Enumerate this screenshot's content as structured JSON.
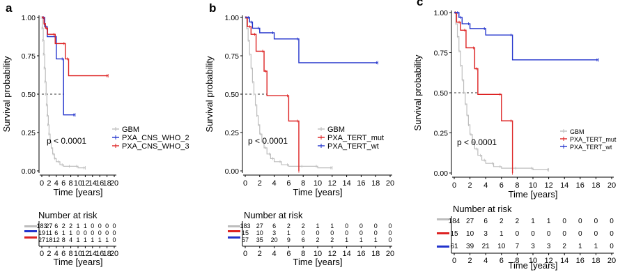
{
  "chart_data": [
    {
      "type": "line",
      "panel_label": "a",
      "xlabel": "Time [years]",
      "ylabel": "Survival probability",
      "xlim": [
        0,
        20
      ],
      "ylim": [
        0,
        1
      ],
      "xticks": [
        "0",
        "2",
        "4",
        "6",
        "8",
        "10",
        "12",
        "14",
        "16",
        "18",
        "20"
      ],
      "yticks": [
        "0.00",
        "0.25",
        "0.50",
        "0.75",
        "1.00"
      ],
      "pvalue": "p < 0.0001",
      "median_line": {
        "y": 0.5,
        "x_end": 6.0
      },
      "legend_position": "center-right",
      "series": [
        {
          "name": "GBM",
          "color": "#bdbdbd",
          "x": [
            0,
            0.2,
            0.4,
            0.6,
            0.8,
            1.0,
            1.2,
            1.4,
            1.6,
            1.8,
            2.0,
            2.3,
            2.6,
            3.0,
            3.5,
            4.0,
            5.0,
            6.0,
            8.0,
            10.0,
            12.0
          ],
          "y": [
            1,
            0.93,
            0.85,
            0.76,
            0.67,
            0.58,
            0.5,
            0.43,
            0.36,
            0.3,
            0.24,
            0.19,
            0.15,
            0.11,
            0.08,
            0.06,
            0.04,
            0.03,
            0.03,
            0.02,
            0.02
          ]
        },
        {
          "name": "PXA_CNS_WHO_2",
          "color": "#2233cc",
          "x": [
            0,
            0.8,
            1.5,
            4.0,
            6.0,
            9.2
          ],
          "y": [
            1.0,
            0.94,
            0.875,
            0.73,
            0.365,
            0.365
          ]
        },
        {
          "name": "PXA_CNS_WHO_3",
          "color": "#dd2222",
          "x": [
            0,
            0.6,
            1.0,
            1.6,
            3.7,
            6.5,
            7.4,
            18.3
          ],
          "y": [
            1.0,
            0.96,
            0.93,
            0.89,
            0.83,
            0.73,
            0.62,
            0.62
          ]
        }
      ],
      "risk_table": {
        "title": "Number at risk",
        "times": [
          "0",
          "2",
          "4",
          "6",
          "8",
          "10",
          "12",
          "14",
          "16",
          "18",
          "20"
        ],
        "rows": [
          {
            "name": "GBM",
            "color": "#bdbdbd",
            "values": [
              "183",
              "27",
              "6",
              "2",
              "2",
              "1",
              "1",
              "0",
              "0",
              "0",
              "0"
            ]
          },
          {
            "name": "PXA_CNS_WHO_2",
            "color": "#2233cc",
            "values": [
              "19",
              "11",
              "6",
              "1",
              "1",
              "0",
              "0",
              "0",
              "0",
              "0",
              "0"
            ]
          },
          {
            "name": "PXA_CNS_WHO_3",
            "color": "#dd2222",
            "values": [
              "27",
              "18",
              "12",
              "8",
              "4",
              "1",
              "1",
              "1",
              "1",
              "1",
              "0"
            ]
          }
        ],
        "xlabel": "Time [years]"
      }
    },
    {
      "type": "line",
      "panel_label": "b",
      "xlabel": "Time [years]",
      "ylabel": "Survival probability",
      "xlim": [
        0,
        20
      ],
      "ylim": [
        0,
        1
      ],
      "xticks": [
        "0",
        "2",
        "4",
        "6",
        "8",
        "10",
        "12",
        "14",
        "16",
        "18",
        "20"
      ],
      "yticks": [
        "0.00",
        "0.25",
        "0.50",
        "0.75",
        "1.00"
      ],
      "pvalue": "p < 0.0001",
      "median_line": {
        "y": 0.5,
        "x_end": 3.0
      },
      "legend_position": "center-right",
      "series": [
        {
          "name": "GBM",
          "color": "#bdbdbd",
          "x": [
            0,
            0.2,
            0.4,
            0.6,
            0.8,
            1.0,
            1.2,
            1.4,
            1.6,
            1.8,
            2.0,
            2.3,
            2.6,
            3.0,
            3.5,
            4.0,
            5.0,
            6.0,
            8.0,
            10.0,
            12.0
          ],
          "y": [
            1,
            0.93,
            0.85,
            0.76,
            0.67,
            0.58,
            0.5,
            0.43,
            0.36,
            0.3,
            0.24,
            0.19,
            0.15,
            0.11,
            0.08,
            0.06,
            0.04,
            0.03,
            0.03,
            0.02,
            0.02
          ]
        },
        {
          "name": "PXA_TERT_mut",
          "color": "#dd2222",
          "x": [
            0,
            0.3,
            0.8,
            1.5,
            2.6,
            3.0,
            6.0,
            7.4
          ],
          "y": [
            1.0,
            0.94,
            0.89,
            0.78,
            0.65,
            0.49,
            0.325,
            0.0
          ]
        },
        {
          "name": "PXA_TERT_wt",
          "color": "#2233cc",
          "x": [
            0,
            0.6,
            1.0,
            2.0,
            4.0,
            7.4,
            18.3
          ],
          "y": [
            1.0,
            0.97,
            0.93,
            0.9,
            0.86,
            0.705,
            0.705
          ]
        }
      ],
      "risk_table": {
        "title": "Number at risk",
        "times": [
          "0",
          "2",
          "4",
          "6",
          "8",
          "10",
          "12",
          "14",
          "16",
          "18",
          "20"
        ],
        "rows": [
          {
            "name": "GBM",
            "color": "#bdbdbd",
            "values": [
              "183",
              "27",
              "6",
              "2",
              "2",
              "1",
              "1",
              "0",
              "0",
              "0",
              "0"
            ]
          },
          {
            "name": "PXA_TERT_mut",
            "color": "#dd2222",
            "values": [
              "15",
              "10",
              "3",
              "1",
              "0",
              "0",
              "0",
              "0",
              "0",
              "0",
              "0"
            ]
          },
          {
            "name": "PXA_TERT_wt",
            "color": "#2233cc",
            "values": [
              "57",
              "35",
              "20",
              "9",
              "6",
              "2",
              "2",
              "1",
              "1",
              "1",
              "0"
            ]
          }
        ],
        "xlabel": "Time [years]"
      }
    },
    {
      "type": "line",
      "panel_label": "c",
      "xlabel": "Time [years]",
      "ylabel": "Survival probability",
      "xlim": [
        0,
        20
      ],
      "ylim": [
        0,
        1
      ],
      "xticks": [
        "0",
        "2",
        "4",
        "6",
        "8",
        "10",
        "12",
        "14",
        "16",
        "18",
        "20"
      ],
      "yticks": [
        "0.00",
        "0.25",
        "0.50",
        "0.75",
        "1.00"
      ],
      "pvalue": "p < 0.0001",
      "median_line": {
        "y": 0.5,
        "x_end": 3.0
      },
      "legend_position": "center-right",
      "series": [
        {
          "name": "GBM",
          "color": "#bdbdbd",
          "x": [
            0,
            0.2,
            0.4,
            0.6,
            0.8,
            1.0,
            1.2,
            1.4,
            1.6,
            1.8,
            2.0,
            2.3,
            2.6,
            3.0,
            3.5,
            4.0,
            5.0,
            6.0,
            8.0,
            10.0,
            12.0
          ],
          "y": [
            1,
            0.93,
            0.85,
            0.76,
            0.67,
            0.58,
            0.5,
            0.43,
            0.36,
            0.3,
            0.24,
            0.19,
            0.15,
            0.11,
            0.08,
            0.06,
            0.04,
            0.03,
            0.03,
            0.02,
            0.02
          ]
        },
        {
          "name": "PXA_TERT_mut",
          "color": "#dd2222",
          "x": [
            0,
            0.3,
            0.8,
            1.5,
            2.6,
            3.0,
            6.0,
            7.4
          ],
          "y": [
            1.0,
            0.94,
            0.89,
            0.78,
            0.65,
            0.49,
            0.325,
            0.0
          ]
        },
        {
          "name": "PXA_TERT_wt",
          "color": "#2233cc",
          "x": [
            0,
            0.6,
            1.0,
            2.0,
            4.0,
            7.4,
            18.3
          ],
          "y": [
            1.0,
            0.97,
            0.93,
            0.9,
            0.86,
            0.705,
            0.705
          ]
        }
      ],
      "risk_table": {
        "title": "Number at risk",
        "times": [
          "0",
          "2",
          "4",
          "6",
          "8",
          "10",
          "12",
          "14",
          "16",
          "18",
          "20"
        ],
        "rows": [
          {
            "name": "GBM",
            "color": "#bdbdbd",
            "values": [
              "184",
              "27",
              "6",
              "2",
              "2",
              "1",
              "1",
              "0",
              "0",
              "0",
              "0"
            ]
          },
          {
            "name": "PXA_TERT_mut",
            "color": "#dd2222",
            "values": [
              "15",
              "10",
              "3",
              "1",
              "0",
              "0",
              "0",
              "0",
              "0",
              "0",
              "0"
            ]
          },
          {
            "name": "PXA_TERT_wt",
            "color": "#2233cc",
            "values": [
              "61",
              "39",
              "21",
              "10",
              "7",
              "3",
              "3",
              "2",
              "1",
              "1",
              "0"
            ]
          }
        ],
        "xlabel": "Time [years]"
      }
    }
  ]
}
